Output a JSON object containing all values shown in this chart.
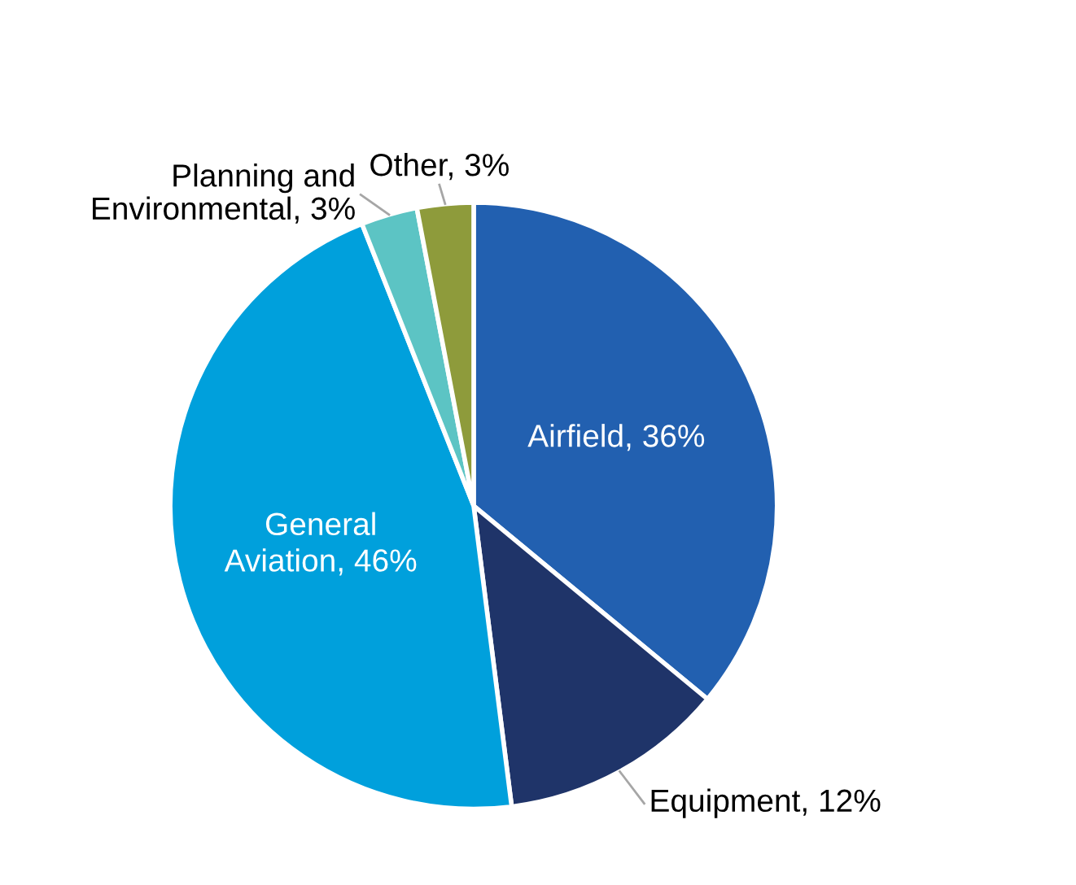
{
  "chart_data": {
    "type": "pie",
    "categories": [
      "Airfield",
      "Equipment",
      "General Aviation",
      "Planning and Environmental",
      "Other"
    ],
    "values": [
      36,
      12,
      46,
      3,
      3
    ],
    "value_labels": [
      "36%",
      "12%",
      "46%",
      "3%",
      "3%"
    ],
    "colors": [
      "#2260b0",
      "#1f3469",
      "#00a0dc",
      "#5cc4c4",
      "#8e9b3b"
    ]
  }
}
